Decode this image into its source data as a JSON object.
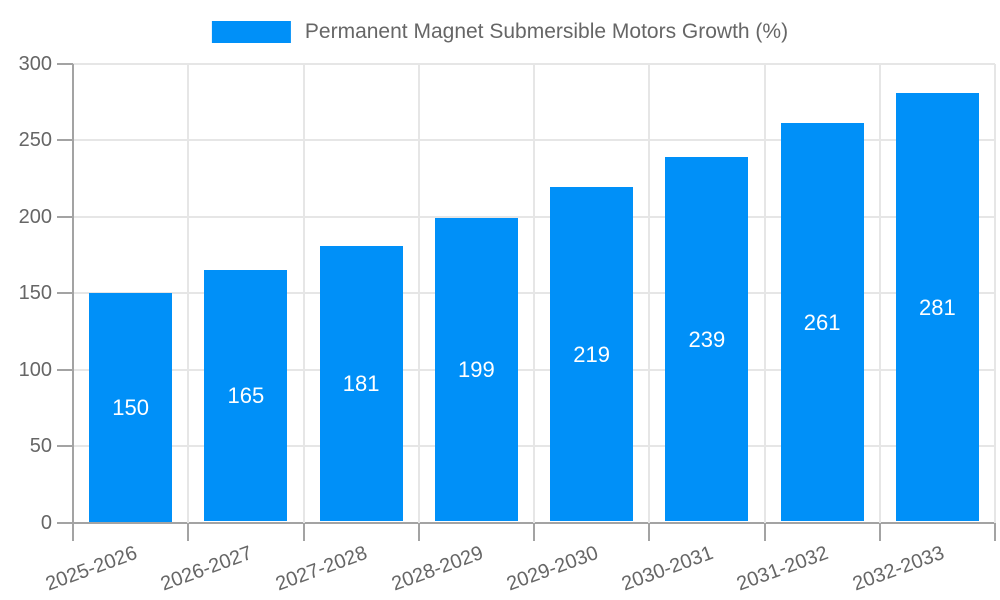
{
  "legend": {
    "label": "Permanent Magnet Submersible Motors Growth (%)"
  },
  "chart_data": {
    "type": "bar",
    "title": "",
    "xlabel": "",
    "ylabel": "",
    "categories": [
      "2025-2026",
      "2026-2027",
      "2027-2028",
      "2028-2029",
      "2029-2030",
      "2030-2031",
      "2031-2032",
      "2032-2033"
    ],
    "series": [
      {
        "name": "Permanent Magnet Submersible Motors Growth (%)",
        "values": [
          150,
          165,
          181,
          199,
          219,
          239,
          261,
          281
        ]
      }
    ],
    "ylim": [
      0,
      300
    ],
    "ytick_step": 50,
    "ytick_labels": [
      "0",
      "50",
      "100",
      "150",
      "200",
      "250",
      "300"
    ],
    "grid": true,
    "legend_position": "top-center",
    "xtick_rotation_deg": -20,
    "bar_labels_visible": true,
    "colors": {
      "bar": "#0090f8",
      "bar_label": "#ffffff",
      "axis_line": "#a3a3a3",
      "grid_line": "#e6e6e6",
      "tick_text": "#666666",
      "legend_text": "#666666",
      "background": "#ffffff"
    }
  }
}
